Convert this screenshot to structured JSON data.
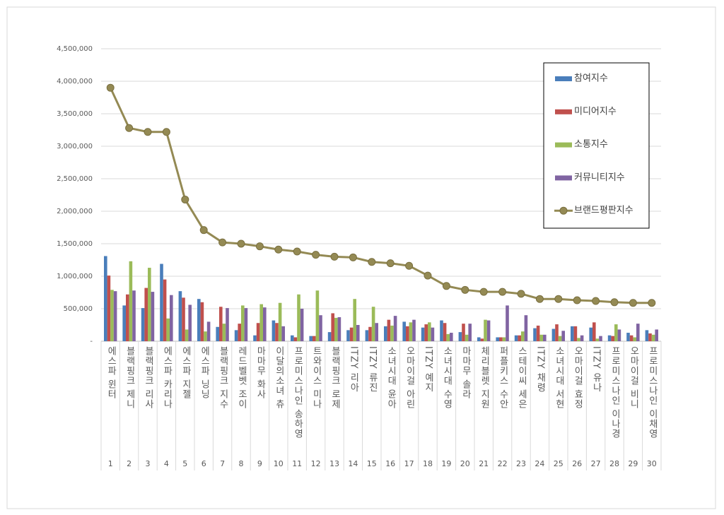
{
  "chart_data": {
    "type": "bar",
    "categories": [
      "에스파 윈터",
      "블랙핑크 제니",
      "블랙핑크 리사",
      "에스파 카리나",
      "에스파 지젤",
      "에스파 닝닝",
      "블랙핑크 지수",
      "레드벨벳 조이",
      "마마무 화사",
      "이달의소녀 츄",
      "프로미스나인 송하영",
      "트와이스 미나",
      "블랙핑크 로제",
      "ITZY 리아",
      "ITZY 류진",
      "소녀시대 윤아",
      "오마이걸 아린",
      "ITZY 예지",
      "소녀시대 수영",
      "마마무 솔라",
      "체리블렛 지원",
      "퍼플키스 수안",
      "스테이씨 세은",
      "ITZY 채령",
      "소녀시대 서현",
      "오마이걸 효정",
      "ITZY 유나",
      "프로미스나인 이나경",
      "오마이걸 비니",
      "프로미스나인 이채영"
    ],
    "ranks": [
      1,
      2,
      3,
      4,
      5,
      6,
      7,
      8,
      9,
      10,
      11,
      12,
      13,
      14,
      15,
      16,
      17,
      18,
      19,
      20,
      21,
      22,
      23,
      24,
      25,
      26,
      27,
      28,
      29,
      30
    ],
    "series": [
      {
        "name": "참여지수",
        "color": "#4a7ebb",
        "values": [
          1310000,
          550000,
          510000,
          1190000,
          770000,
          650000,
          220000,
          170000,
          90000,
          320000,
          90000,
          80000,
          140000,
          170000,
          170000,
          230000,
          300000,
          210000,
          320000,
          140000,
          60000,
          60000,
          90000,
          200000,
          190000,
          230000,
          210000,
          90000,
          130000,
          170000
        ]
      },
      {
        "name": "미디어지수",
        "color": "#c0504d",
        "values": [
          1010000,
          720000,
          820000,
          950000,
          670000,
          600000,
          530000,
          270000,
          280000,
          280000,
          60000,
          80000,
          430000,
          210000,
          220000,
          330000,
          230000,
          260000,
          280000,
          270000,
          40000,
          60000,
          90000,
          240000,
          260000,
          230000,
          290000,
          80000,
          90000,
          120000
        ]
      },
      {
        "name": "소통지수",
        "color": "#9bbb59",
        "values": [
          790000,
          1230000,
          1130000,
          350000,
          180000,
          150000,
          270000,
          550000,
          570000,
          590000,
          720000,
          780000,
          360000,
          650000,
          530000,
          240000,
          290000,
          290000,
          110000,
          100000,
          330000,
          60000,
          150000,
          100000,
          80000,
          50000,
          40000,
          260000,
          60000,
          100000
        ]
      },
      {
        "name": "커뮤니티지수",
        "color": "#8064a2",
        "values": [
          770000,
          780000,
          760000,
          710000,
          560000,
          300000,
          510000,
          510000,
          520000,
          230000,
          500000,
          400000,
          370000,
          250000,
          280000,
          390000,
          330000,
          210000,
          130000,
          270000,
          320000,
          550000,
          400000,
          100000,
          160000,
          90000,
          80000,
          180000,
          270000,
          180000
        ]
      },
      {
        "name": "브랜드평판지수",
        "type": "line",
        "color": "#948a54",
        "values": [
          3900000,
          3280000,
          3220000,
          3220000,
          2180000,
          1710000,
          1520000,
          1500000,
          1460000,
          1410000,
          1380000,
          1330000,
          1300000,
          1290000,
          1220000,
          1200000,
          1160000,
          1010000,
          850000,
          790000,
          760000,
          760000,
          730000,
          650000,
          650000,
          630000,
          620000,
          600000,
          590000,
          590000
        ]
      }
    ],
    "ylim": [
      0,
      4500000
    ],
    "yticks": [
      {
        "value": 0,
        "label": "-"
      },
      {
        "value": 500000,
        "label": "500,000"
      },
      {
        "value": 1000000,
        "label": "1,000,000"
      },
      {
        "value": 1500000,
        "label": "1,500,000"
      },
      {
        "value": 2000000,
        "label": "2,000,000"
      },
      {
        "value": 2500000,
        "label": "2,500,000"
      },
      {
        "value": 3000000,
        "label": "3,000,000"
      },
      {
        "value": 3500000,
        "label": "3,500,000"
      },
      {
        "value": 4000000,
        "label": "4,000,000"
      },
      {
        "value": 4500000,
        "label": "4,500,000"
      }
    ],
    "grid": true,
    "legend": "top-right"
  }
}
